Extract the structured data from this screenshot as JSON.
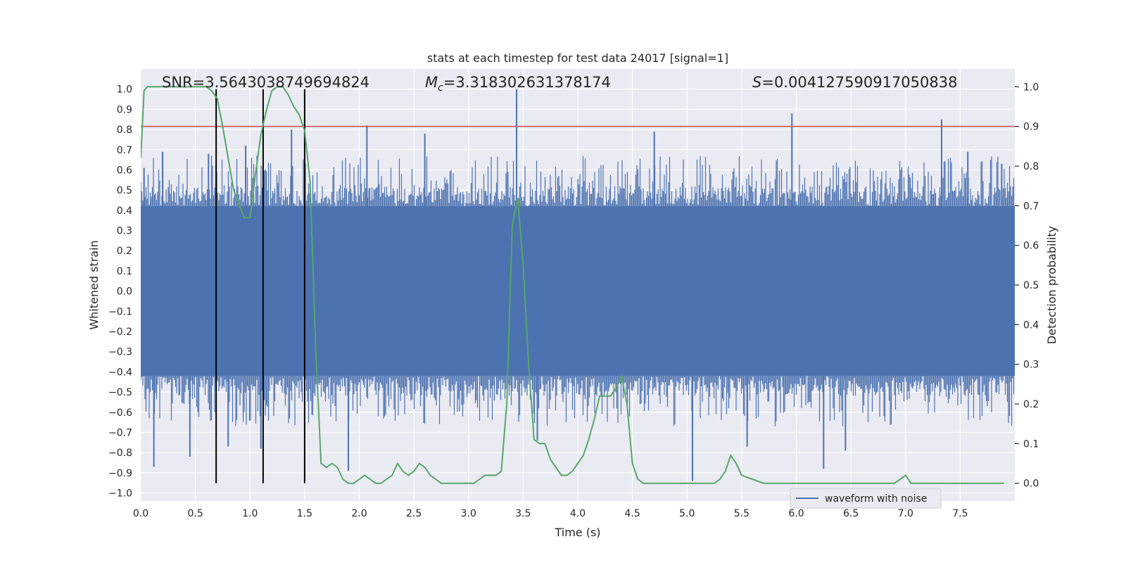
{
  "chart_data": {
    "type": "line",
    "title": "stats at each timestep for test data 24017 [signal=1]",
    "xlabel": "Time (s)",
    "ylabel": "Whitened strain",
    "y2label": "Detection probability",
    "xlim": [
      0,
      8
    ],
    "ylim": [
      -1.04,
      1.1
    ],
    "y2lim": [
      -0.045,
      1.045
    ],
    "xticks": [
      "0.0",
      "0.5",
      "1.0",
      "1.5",
      "2.0",
      "2.5",
      "3.0",
      "3.5",
      "4.0",
      "4.5",
      "5.0",
      "5.5",
      "6.0",
      "6.5",
      "7.0",
      "7.5"
    ],
    "yticks": [
      "1.0",
      "0.9",
      "0.8",
      "0.7",
      "0.6",
      "0.5",
      "0.4",
      "0.3",
      "0.2",
      "0.1",
      "0.0",
      "-0.1",
      "-0.2",
      "-0.3",
      "-0.4",
      "-0.5",
      "-0.6",
      "-0.7",
      "-0.8",
      "-0.9",
      "-1.0"
    ],
    "y2ticks": [
      "1.0",
      "0.9",
      "0.8",
      "0.7",
      "0.6",
      "0.5",
      "0.4",
      "0.3",
      "0.2",
      "0.1",
      "0.0"
    ],
    "grid": true,
    "legend": {
      "entries": [
        "waveform with noise"
      ],
      "placement": "lower right"
    },
    "annotations": {
      "snr": "SNR=3.5643038749694824",
      "mc_symbol": "M",
      "mc_sub": "c",
      "mc_value": "=3.318302631378174",
      "s_symbol": "S",
      "s_value": "=0.004127590917050838"
    },
    "colors": {
      "background": "#eaeaf2",
      "grid": "#ffffff",
      "waveform": "#4c72b0",
      "probability": "#55a868",
      "threshold": "#c44e52",
      "markers": "#000000"
    },
    "threshold_prob": 0.9,
    "marker_times": [
      0.69,
      1.12,
      1.5
    ],
    "waveform_peaks": [
      {
        "x": 0.03,
        "y": 0.61
      },
      {
        "x": 0.12,
        "y": -0.87
      },
      {
        "x": 0.2,
        "y": 0.69
      },
      {
        "x": 0.45,
        "y": -0.82
      },
      {
        "x": 0.62,
        "y": 0.68
      },
      {
        "x": 0.8,
        "y": -0.77
      },
      {
        "x": 0.96,
        "y": 0.72
      },
      {
        "x": 1.1,
        "y": -0.78
      },
      {
        "x": 1.38,
        "y": 0.8
      },
      {
        "x": 1.9,
        "y": -0.89
      },
      {
        "x": 2.07,
        "y": 0.82
      },
      {
        "x": 2.6,
        "y": 0.78
      },
      {
        "x": 3.44,
        "y": 1.0
      },
      {
        "x": 3.63,
        "y": -0.74
      },
      {
        "x": 4.7,
        "y": 0.79
      },
      {
        "x": 5.05,
        "y": -0.94
      },
      {
        "x": 5.55,
        "y": -0.77
      },
      {
        "x": 5.96,
        "y": 0.88
      },
      {
        "x": 6.25,
        "y": -0.88
      },
      {
        "x": 6.45,
        "y": -0.79
      },
      {
        "x": 7.33,
        "y": 0.85
      },
      {
        "x": 7.57,
        "y": 0.69
      },
      {
        "x": 7.88,
        "y": 0.63
      }
    ],
    "series": [
      {
        "name": "waveform with noise",
        "envelope": 0.42,
        "spike_range": [
          0.45,
          0.7
        ]
      },
      {
        "x": [
          0.0,
          0.03,
          0.06,
          0.12,
          0.2,
          0.3,
          0.4,
          0.5,
          0.6,
          0.65,
          0.7,
          0.75,
          0.8,
          0.85,
          0.9,
          0.95,
          1.0,
          1.05,
          1.1,
          1.15,
          1.2,
          1.25,
          1.3,
          1.35,
          1.4,
          1.45,
          1.5,
          1.55,
          1.6,
          1.65,
          1.7,
          1.75,
          1.8,
          1.85,
          1.9,
          1.95,
          2.0,
          2.05,
          2.1,
          2.15,
          2.2,
          2.25,
          2.3,
          2.35,
          2.4,
          2.45,
          2.5,
          2.55,
          2.6,
          2.65,
          2.7,
          2.75,
          2.8,
          2.9,
          3.0,
          3.05,
          3.1,
          3.15,
          3.2,
          3.25,
          3.3,
          3.35,
          3.4,
          3.45,
          3.5,
          3.55,
          3.6,
          3.65,
          3.7,
          3.75,
          3.8,
          3.85,
          3.9,
          3.95,
          4.0,
          4.05,
          4.1,
          4.15,
          4.2,
          4.25,
          4.3,
          4.35,
          4.4,
          4.45,
          4.5,
          4.55,
          4.6,
          4.8,
          5.0,
          5.1,
          5.2,
          5.25,
          5.3,
          5.35,
          5.4,
          5.45,
          5.5,
          5.6,
          5.7,
          5.8,
          6.0,
          6.3,
          6.4,
          6.5,
          6.6,
          6.8,
          6.9,
          7.0,
          7.05,
          7.1,
          7.3,
          7.5,
          7.7,
          7.9
        ],
        "values": [
          0.82,
          0.99,
          1.0,
          1.0,
          1.0,
          1.0,
          1.0,
          1.0,
          1.0,
          0.99,
          0.97,
          0.9,
          0.82,
          0.74,
          0.7,
          0.67,
          0.67,
          0.78,
          0.88,
          0.94,
          0.99,
          1.0,
          1.0,
          0.98,
          0.95,
          0.93,
          0.89,
          0.76,
          0.35,
          0.05,
          0.04,
          0.05,
          0.04,
          0.01,
          0.0,
          0.0,
          0.01,
          0.02,
          0.01,
          0.0,
          0.0,
          0.01,
          0.02,
          0.05,
          0.03,
          0.02,
          0.03,
          0.05,
          0.04,
          0.02,
          0.01,
          0.0,
          0.0,
          0.0,
          0.0,
          0.0,
          0.01,
          0.02,
          0.02,
          0.02,
          0.03,
          0.2,
          0.65,
          0.72,
          0.55,
          0.3,
          0.11,
          0.1,
          0.1,
          0.06,
          0.04,
          0.02,
          0.02,
          0.03,
          0.05,
          0.07,
          0.11,
          0.16,
          0.22,
          0.22,
          0.22,
          0.24,
          0.27,
          0.2,
          0.05,
          0.01,
          0.0,
          0.0,
          0.0,
          0.0,
          0.0,
          0.0,
          0.01,
          0.03,
          0.07,
          0.05,
          0.02,
          0.01,
          0.0,
          0.0,
          0.0,
          0.0,
          0.0,
          0.0,
          0.0,
          0.0,
          0.0,
          0.02,
          0.0,
          0.0,
          0.0,
          0.0,
          0.0,
          0.0
        ]
      }
    ]
  }
}
